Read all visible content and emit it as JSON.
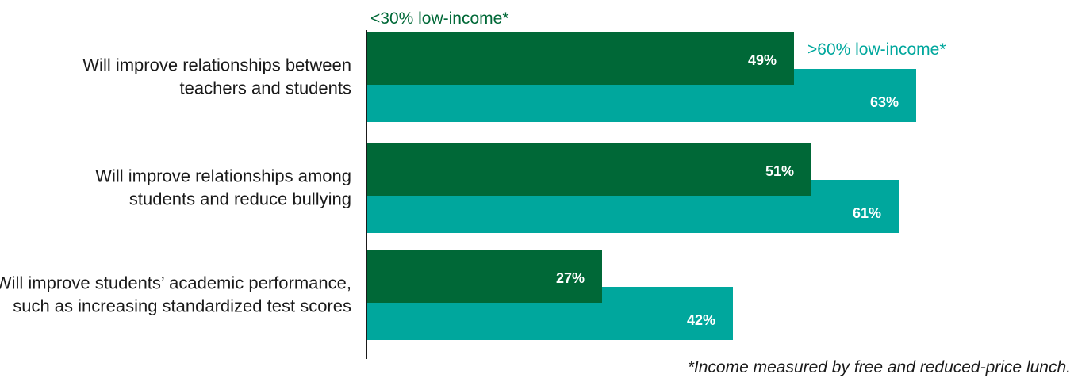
{
  "chart_data": {
    "type": "bar",
    "orientation": "horizontal",
    "categories": [
      [
        "Will improve relationships between",
        "teachers and students"
      ],
      [
        "Will improve relationships among",
        "students and reduce bullying"
      ],
      [
        "Will improve students’ academic performance,",
        "such as increasing standardized test scores"
      ]
    ],
    "series": [
      {
        "name": "<30% low-income*",
        "color": "#006837",
        "values": [
          49,
          51,
          27
        ],
        "labels": [
          "49%",
          "51%",
          "27%"
        ]
      },
      {
        "name": ">60% low-income*",
        "color": "#00a79d",
        "values": [
          63,
          61,
          42
        ],
        "labels": [
          "63%",
          "61%",
          "42%"
        ]
      }
    ],
    "xlim": [
      0,
      100
    ],
    "unit": "%",
    "grid": false,
    "legend": "inline labels near top bars",
    "footnote": "*Income measured by free and reduced-price lunch."
  }
}
